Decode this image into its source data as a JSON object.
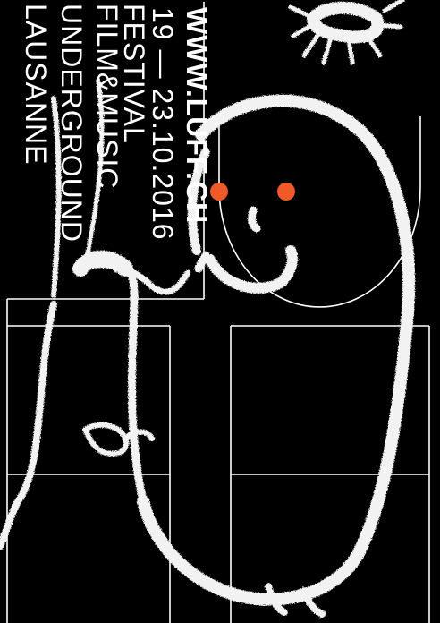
{
  "poster": {
    "title_line_1": "LAUSANNE",
    "title_line_2": "UNDERGROUND",
    "title_line_3": "FILM&MUSIC",
    "title_line_4": "FESTIVAL",
    "dates": "19 — 23.10.2016",
    "url": "WWW.LUFF.CH"
  },
  "colors": {
    "background": "#000000",
    "foreground": "#ffffff",
    "accent": "#f05a28"
  }
}
